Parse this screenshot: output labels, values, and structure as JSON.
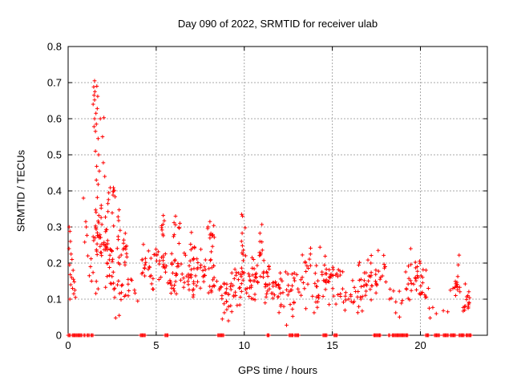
{
  "chart_data": {
    "type": "scatter",
    "title": "Day 090 of 2022, SRMTID for receiver ulab",
    "xlabel": "GPS time / hours",
    "ylabel": "SRMTID / TECUs",
    "xlim": [
      0,
      23.8
    ],
    "ylim": [
      0,
      0.8
    ],
    "x_ticks": [
      0,
      5,
      10,
      15,
      20
    ],
    "x_tick_labels": [
      "0",
      "5",
      "10",
      "15",
      "20"
    ],
    "y_ticks": [
      0,
      0.1,
      0.2,
      0.3,
      0.4,
      0.5,
      0.6,
      0.7,
      0.8
    ],
    "y_tick_labels": [
      "0",
      "0.1",
      "0.2",
      "0.3",
      "0.4",
      "0.5",
      "0.6",
      "0.7",
      "0.8"
    ],
    "grid": true,
    "legend": "none",
    "marker": {
      "symbol": "plus",
      "color": "#ff0000",
      "size": 5
    },
    "colors": {
      "marker": "#ff0000",
      "grid": "#aaaaaa",
      "axis": "#000000",
      "background": "#ffffff",
      "text": "#000000"
    },
    "notable_points": [
      [
        1.5,
        0.705
      ],
      [
        1.45,
        0.688
      ],
      [
        1.63,
        0.69
      ],
      [
        1.52,
        0.675
      ],
      [
        1.47,
        0.665
      ],
      [
        1.68,
        0.662
      ],
      [
        1.5,
        0.652
      ],
      [
        1.42,
        0.64
      ],
      [
        1.65,
        0.628
      ],
      [
        1.58,
        0.615
      ],
      [
        1.5,
        0.6
      ],
      [
        1.83,
        0.6
      ],
      [
        2.03,
        0.603
      ],
      [
        1.6,
        0.585
      ],
      [
        1.47,
        0.578
      ],
      [
        1.55,
        0.565
      ],
      [
        1.7,
        0.545
      ],
      [
        1.95,
        0.55
      ],
      [
        1.55,
        0.51
      ],
      [
        1.73,
        0.5
      ],
      [
        2.0,
        0.478
      ],
      [
        1.62,
        0.468
      ],
      [
        1.77,
        0.455
      ],
      [
        2.08,
        0.44
      ],
      [
        1.6,
        0.43
      ],
      [
        1.7,
        0.418
      ],
      [
        0.06,
        0.3
      ],
      [
        0.1,
        0.288
      ],
      [
        0.13,
        0.26
      ],
      [
        0.05,
        0.24
      ],
      [
        0.17,
        0.225
      ],
      [
        0.22,
        0.21
      ],
      [
        0.08,
        0.195
      ],
      [
        0.28,
        0.18
      ],
      [
        0.12,
        0.168
      ],
      [
        0.2,
        0.16
      ],
      [
        0.3,
        0.155
      ],
      [
        0.35,
        0.148
      ],
      [
        0.15,
        0.14
      ],
      [
        0.25,
        0.13
      ],
      [
        0.38,
        0.125
      ],
      [
        0.32,
        0.115
      ],
      [
        0.42,
        0.105
      ],
      [
        0.1,
        0.1
      ],
      [
        0.87,
        0.38
      ],
      [
        1.0,
        0.315
      ],
      [
        1.03,
        0.3
      ],
      [
        1.07,
        0.277
      ],
      [
        0.94,
        0.258
      ],
      [
        1.12,
        0.22
      ],
      [
        1.3,
        0.212
      ],
      [
        1.27,
        0.19
      ],
      [
        1.2,
        0.165
      ],
      [
        1.33,
        0.15
      ],
      [
        5.4,
        0.332
      ],
      [
        6.1,
        0.33
      ],
      [
        7.0,
        0.285
      ],
      [
        8.05,
        0.315
      ],
      [
        9.85,
        0.335
      ],
      [
        9.9,
        0.33
      ],
      [
        11.0,
        0.307
      ],
      [
        14.3,
        0.244
      ],
      [
        17.6,
        0.235
      ],
      [
        19.45,
        0.24
      ],
      [
        22.2,
        0.222
      ],
      [
        22.15,
        0.195
      ],
      [
        20.45,
        0.13
      ],
      [
        20.5,
        0.075
      ],
      [
        20.55,
        0.048
      ],
      [
        20.7,
        0.077
      ],
      [
        20.9,
        0.06
      ],
      [
        21.3,
        0.068
      ],
      [
        21.55,
        0.065
      ],
      [
        21.7,
        0.125
      ],
      [
        21.85,
        0.13
      ],
      [
        12.4,
        0.028
      ],
      [
        8.75,
        0.045
      ],
      [
        9.1,
        0.04
      ],
      [
        2.7,
        0.048
      ],
      [
        2.9,
        0.055
      ],
      [
        3.95,
        0.095
      ]
    ],
    "cluster_regions": [
      {
        "x": [
          1.38,
          2.28
        ],
        "y": [
          0.1,
          0.4
        ],
        "n": 58
      },
      {
        "x": [
          2.28,
          3.35
        ],
        "y": [
          0.06,
          0.37
        ],
        "n": 52
      },
      {
        "x": [
          2.25,
          2.68
        ],
        "y": [
          0.365,
          0.432
        ],
        "n": 9
      },
      {
        "x": [
          3.35,
          3.8
        ],
        "y": [
          0.08,
          0.175
        ],
        "n": 8
      },
      {
        "x": [
          4.12,
          4.85
        ],
        "y": [
          0.1,
          0.265
        ],
        "n": 22
      },
      {
        "x": [
          4.85,
          5.5
        ],
        "y": [
          0.1,
          0.3
        ],
        "n": 20
      },
      {
        "x": [
          5.28,
          5.48
        ],
        "y": [
          0.27,
          0.335
        ],
        "n": 6
      },
      {
        "x": [
          5.52,
          6.42
        ],
        "y": [
          0.09,
          0.25
        ],
        "n": 30
      },
      {
        "x": [
          5.95,
          6.35
        ],
        "y": [
          0.25,
          0.325
        ],
        "n": 8
      },
      {
        "x": [
          6.45,
          7.35
        ],
        "y": [
          0.07,
          0.26
        ],
        "n": 32
      },
      {
        "x": [
          6.88,
          7.2
        ],
        "y": [
          0.22,
          0.28
        ],
        "n": 5
      },
      {
        "x": [
          7.35,
          8.45
        ],
        "y": [
          0.08,
          0.26
        ],
        "n": 36
      },
      {
        "x": [
          7.92,
          8.3
        ],
        "y": [
          0.25,
          0.322
        ],
        "n": 9
      },
      {
        "x": [
          8.5,
          9.2
        ],
        "y": [
          0.035,
          0.165
        ],
        "n": 20
      },
      {
        "x": [
          9.2,
          9.85
        ],
        "y": [
          0.05,
          0.22
        ],
        "n": 24
      },
      {
        "x": [
          9.82,
          10.08
        ],
        "y": [
          0.13,
          0.33
        ],
        "n": 16
      },
      {
        "x": [
          10.08,
          10.85
        ],
        "y": [
          0.08,
          0.225
        ],
        "n": 30
      },
      {
        "x": [
          10.85,
          11.12
        ],
        "y": [
          0.13,
          0.3
        ],
        "n": 13
      },
      {
        "x": [
          11.15,
          11.85
        ],
        "y": [
          0.07,
          0.215
        ],
        "n": 26
      },
      {
        "x": [
          11.9,
          13.15
        ],
        "y": [
          0.04,
          0.21
        ],
        "n": 36
      },
      {
        "x": [
          13.2,
          13.9
        ],
        "y": [
          0.06,
          0.25
        ],
        "n": 18
      },
      {
        "x": [
          13.9,
          14.35
        ],
        "y": [
          0.05,
          0.2
        ],
        "n": 14
      },
      {
        "x": [
          14.4,
          14.78
        ],
        "y": [
          0.09,
          0.235
        ],
        "n": 15
      },
      {
        "x": [
          14.8,
          15.6
        ],
        "y": [
          0.06,
          0.21
        ],
        "n": 26
      },
      {
        "x": [
          15.6,
          16.38
        ],
        "y": [
          0.05,
          0.155
        ],
        "n": 14
      },
      {
        "x": [
          16.42,
          17.35
        ],
        "y": [
          0.05,
          0.225
        ],
        "n": 34
      },
      {
        "x": [
          17.45,
          18.1
        ],
        "y": [
          0.08,
          0.23
        ],
        "n": 16
      },
      {
        "x": [
          18.15,
          19.05
        ],
        "y": [
          0.04,
          0.15
        ],
        "n": 10
      },
      {
        "x": [
          19.15,
          20.35
        ],
        "y": [
          0.08,
          0.215
        ],
        "n": 38
      },
      {
        "x": [
          21.95,
          22.25
        ],
        "y": [
          0.1,
          0.168
        ],
        "n": 14
      },
      {
        "x": [
          22.38,
          22.8
        ],
        "y": [
          0.05,
          0.16
        ],
        "n": 16
      }
    ],
    "zero_value_runs": [
      [
        0.0,
        0.14
      ],
      [
        0.23,
        0.8
      ],
      [
        0.9,
        0.97
      ],
      [
        1.08,
        1.2
      ],
      [
        1.3,
        1.45
      ],
      [
        4.1,
        4.4
      ],
      [
        5.5,
        5.7
      ],
      [
        8.5,
        8.88
      ],
      [
        11.3,
        11.42
      ],
      [
        12.55,
        12.8
      ],
      [
        12.87,
        13.1
      ],
      [
        14.47,
        14.74
      ],
      [
        15.1,
        15.3
      ],
      [
        17.35,
        17.77
      ],
      [
        18.2,
        18.3
      ],
      [
        18.4,
        19.3
      ],
      [
        20.3,
        20.5
      ],
      [
        20.8,
        21.1
      ],
      [
        21.3,
        21.6
      ],
      [
        21.7,
        22.0
      ],
      [
        22.2,
        22.5
      ],
      [
        22.6,
        22.9
      ]
    ]
  }
}
